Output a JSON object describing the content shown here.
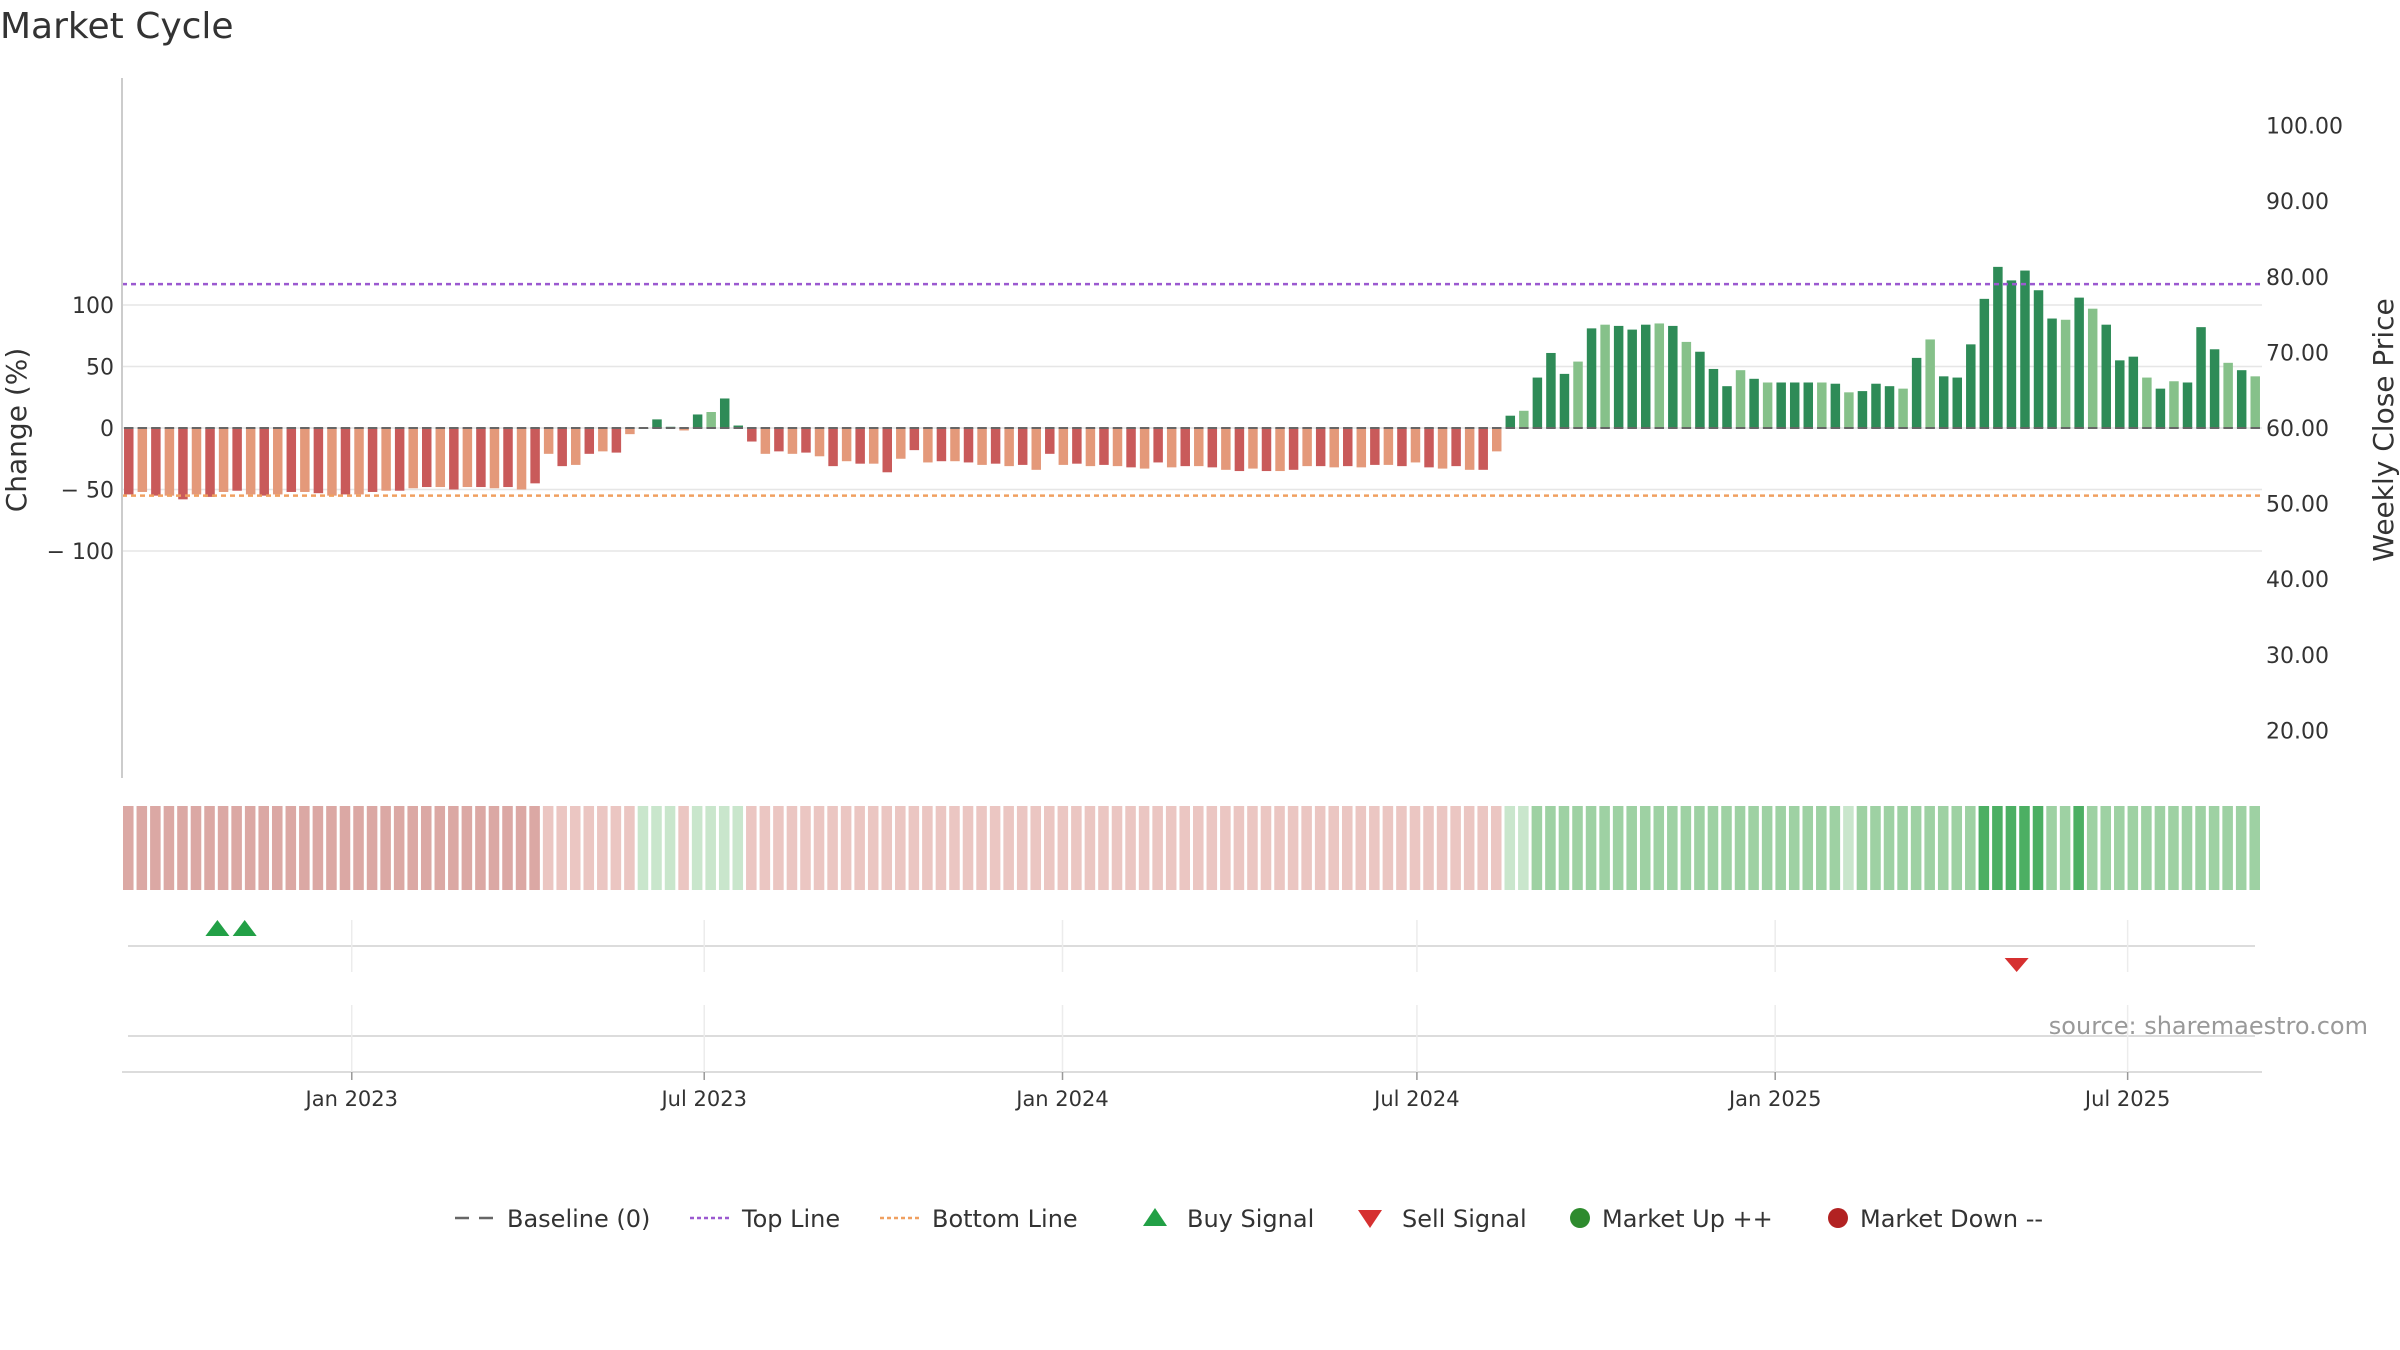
{
  "chart_data": {
    "type": "bar",
    "title": "Market Cycle",
    "ylabel": "Change (%)",
    "y2label": "Weekly Close Price",
    "ylim": [
      -140,
      140
    ],
    "y2lim": [
      15,
      105
    ],
    "yticks": [
      100,
      50,
      0,
      -50,
      -100
    ],
    "ytick_labels": [
      "100",
      "50",
      "0",
      "− 50",
      "− 100"
    ],
    "y2ticks": [
      100,
      90,
      80,
      70,
      60,
      50,
      40,
      30,
      20
    ],
    "y2tick_labels": [
      "100.00",
      "90.00",
      "80.00",
      "70.00",
      "60.00",
      "50.00",
      "40.00",
      "30.00",
      "20.00"
    ],
    "x_start": "2022-09-05",
    "x_end": "2025-09-08",
    "xticks": [
      {
        "date": "2023-01-01",
        "label": "Jan 2023"
      },
      {
        "date": "2023-07-01",
        "label": "Jul 2023"
      },
      {
        "date": "2024-01-01",
        "label": "Jan 2024"
      },
      {
        "date": "2024-07-01",
        "label": "Jul 2024"
      },
      {
        "date": "2025-01-01",
        "label": "Jan 2025"
      },
      {
        "date": "2025-07-01",
        "label": "Jul 2025"
      }
    ],
    "top_line": 117,
    "bottom_line": -55,
    "baseline": 0,
    "grid": true,
    "legend_position": "bottom",
    "bar_values": [
      -54,
      -52,
      -55,
      -55,
      -58,
      -54,
      -56,
      -52,
      -51,
      -54,
      -55,
      -54,
      -52,
      -52,
      -53,
      -55,
      -54,
      -54,
      -52,
      -51,
      -51,
      -49,
      -48,
      -48,
      -50,
      -48,
      -48,
      -49,
      -48,
      -50,
      -45,
      -21,
      -31,
      -30,
      -21,
      -19,
      -20,
      -5,
      0,
      7,
      1,
      -2,
      11,
      13,
      24,
      2,
      -11,
      -21,
      -19,
      -21,
      -20,
      -23,
      -31,
      -27,
      -29,
      -29,
      -36,
      -25,
      -18,
      -28,
      -27,
      -27,
      -28,
      -30,
      -29,
      -31,
      -30,
      -34,
      -21,
      -30,
      -29,
      -31,
      -30,
      -31,
      -32,
      -33,
      -28,
      -32,
      -31,
      -31,
      -32,
      -34,
      -35,
      -33,
      -35,
      -35,
      -34,
      -31,
      -31,
      -32,
      -31,
      -32,
      -30,
      -30,
      -31,
      -28,
      -32,
      -33,
      -31,
      -34,
      -34,
      -19,
      10,
      14,
      41,
      61,
      44,
      54,
      81,
      84,
      83,
      80,
      84,
      85,
      83,
      70,
      62,
      48,
      34,
      47,
      40,
      37,
      37,
      37,
      37,
      37,
      36,
      29,
      30,
      36,
      34,
      32,
      57,
      72,
      42,
      41,
      68,
      105,
      131,
      120,
      128,
      112,
      89,
      88,
      106,
      97,
      84,
      55,
      58,
      41,
      32,
      38,
      37,
      82,
      64,
      53,
      47,
      42
    ],
    "bar_colors": [
      "#c95a5a",
      "#e4997a"
    ],
    "up_colors": [
      "#2e8b57",
      "#86c18a"
    ],
    "heat_strip": {
      "neg_strong": "#dba8a4",
      "neg_weak": "#ebc6c2",
      "pos_weak": "#c9e6cc",
      "pos_mid": "#9ed1a3",
      "pos_strong": "#4caf63"
    },
    "buy_signal_dates": [
      "2022-10-24",
      "2022-11-07"
    ],
    "sell_signal_dates": [
      "2025-05-05"
    ],
    "legend": [
      {
        "key": "baseline",
        "label": "Baseline (0)"
      },
      {
        "key": "top",
        "label": "Top Line"
      },
      {
        "key": "bottom",
        "label": "Bottom Line"
      },
      {
        "key": "buy",
        "label": "Buy Signal"
      },
      {
        "key": "sell",
        "label": "Sell Signal"
      },
      {
        "key": "up",
        "label": "Market Up ++"
      },
      {
        "key": "down",
        "label": "Market Down --"
      }
    ],
    "source": "source: sharemaestro.com"
  },
  "colors": {
    "top_line": "#9b59d0",
    "bottom_line": "#f0a060",
    "baseline": "#666666",
    "buy": "#22a046",
    "sell": "#d63030",
    "market_up": "#2e8b2e",
    "market_down": "#b22222",
    "grid": "#e6e6e6",
    "axis": "#cccccc"
  }
}
